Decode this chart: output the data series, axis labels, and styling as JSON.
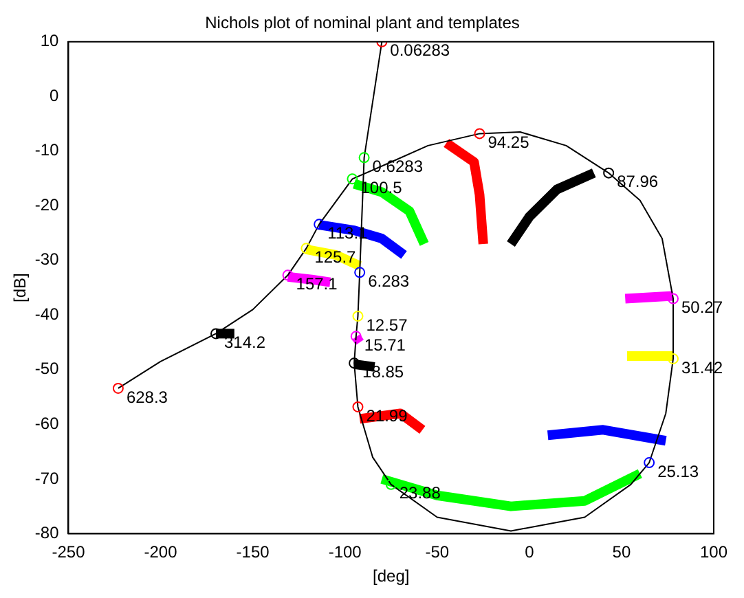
{
  "chart_data": {
    "type": "line",
    "title": "Nichols plot of nominal plant and templates",
    "xlabel": "[deg]",
    "ylabel": "[dB]",
    "xlim": [
      -250,
      100
    ],
    "xticks": [
      -250,
      -200,
      -150,
      -100,
      -50,
      0,
      50,
      100
    ],
    "ylim": [
      -80,
      10
    ],
    "yticks": [
      -80,
      -70,
      -60,
      -50,
      -40,
      -30,
      -20,
      -10,
      0,
      10
    ],
    "grid": false,
    "legend": false,
    "series": [
      {
        "color": "#000000",
        "marker": "none",
        "x": [
          -80,
          -89.6,
          -92,
          -93,
          -94,
          -95,
          -93,
          -85,
          -75,
          -50,
          -10,
          30,
          55,
          65,
          74,
          78,
          78,
          72,
          60,
          43,
          20,
          -5,
          -27,
          -55,
          -75,
          -96,
          -114,
          -121,
          -131,
          -150,
          -170,
          -200,
          -223
        ],
        "values": [
          10,
          -11.2,
          -32.2,
          -40.2,
          -43.9,
          -48.8,
          -56.8,
          -66,
          -71,
          -77,
          -79.5,
          -77,
          -71,
          -67,
          -58,
          -48,
          -37,
          -26,
          -19,
          -14,
          -9,
          -6.5,
          -6.8,
          -9,
          -12,
          -15.1,
          -23.4,
          -27.8,
          -32.7,
          -39,
          -43.4,
          -48.5,
          -53.4
        ]
      },
      {
        "color": "#ff0000",
        "marker": "none",
        "x": [
          -45,
          -30,
          -27,
          -25
        ],
        "values": [
          -8.5,
          -12,
          -18,
          -27
        ]
      },
      {
        "color": "#000000",
        "marker": "none",
        "x": [
          -10,
          0,
          15,
          35
        ],
        "values": [
          -27,
          -22,
          -17,
          -14
        ]
      },
      {
        "color": "#00ff00",
        "marker": "none",
        "x": [
          -95,
          -80,
          -65,
          -57
        ],
        "values": [
          -16,
          -17.5,
          -21,
          -27
        ]
      },
      {
        "color": "#0000ff",
        "marker": "none",
        "x": [
          -114,
          -95,
          -80,
          -68
        ],
        "values": [
          -23.5,
          -24.5,
          -26,
          -29
        ]
      },
      {
        "color": "#ffff00",
        "marker": "none",
        "x": [
          -121,
          -105,
          -92
        ],
        "values": [
          -28,
          -29,
          -31
        ]
      },
      {
        "color": "#ff00ff",
        "marker": "none",
        "x": [
          -131,
          -118,
          -108
        ],
        "values": [
          -33,
          -33.5,
          -34
        ]
      },
      {
        "color": "#ff00ff",
        "marker": "none",
        "x": [
          52,
          78
        ],
        "values": [
          -37,
          -36.5
        ]
      },
      {
        "color": "#ffff00",
        "marker": "none",
        "x": [
          53,
          78
        ],
        "values": [
          -47.5,
          -47.5
        ]
      },
      {
        "color": "#000000",
        "marker": "none",
        "x": [
          -95,
          -84
        ],
        "values": [
          -49,
          -49.5
        ]
      },
      {
        "color": "#ff00ff",
        "marker": "none",
        "x": [
          -94,
          -92
        ],
        "values": [
          -44,
          -45
        ]
      },
      {
        "color": "#ff0000",
        "marker": "none",
        "x": [
          -92,
          -70,
          -58
        ],
        "values": [
          -59,
          -58,
          -61
        ]
      },
      {
        "color": "#00ff00",
        "marker": "none",
        "x": [
          -80,
          -50,
          -10,
          30,
          60
        ],
        "values": [
          -70,
          -73,
          -75,
          -74,
          -69
        ]
      },
      {
        "color": "#0000ff",
        "marker": "none",
        "x": [
          10,
          40,
          74
        ],
        "values": [
          -62,
          -61,
          -63
        ]
      },
      {
        "color": "#000000",
        "marker": "none",
        "x": [
          -170,
          -160
        ],
        "values": [
          -43.4,
          -43.4
        ]
      },
      {
        "type": "scatter",
        "marker": "circle",
        "x": [
          -80,
          -89.6,
          -92,
          -93,
          -94,
          -95,
          -93,
          -75,
          65,
          78,
          78,
          43,
          -27,
          -96,
          -114,
          -121,
          -131,
          -170,
          -223
        ],
        "values": [
          10,
          -11.2,
          -32.2,
          -40.2,
          -43.9,
          -48.8,
          -56.8,
          -71,
          -67,
          -48,
          -37,
          -14,
          -6.8,
          -15.1,
          -23.4,
          -27.8,
          -32.7,
          -43.4,
          -53.4
        ],
        "colors": [
          "#ff0000",
          "#00ff00",
          "#0000ff",
          "#ffff00",
          "#ff00ff",
          "#000000",
          "#ff0000",
          "#00ff00",
          "#0000ff",
          "#ffff00",
          "#ff00ff",
          "#000000",
          "#ff0000",
          "#00ff00",
          "#0000ff",
          "#ffff00",
          "#ff00ff",
          "#000000",
          "#ff0000"
        ]
      }
    ],
    "annotations": [
      {
        "text": "0.06283",
        "x": -80,
        "y": 10
      },
      {
        "text": "0.6283",
        "x": -89.6,
        "y": -11.2
      },
      {
        "text": "6.283",
        "x": -92,
        "y": -32.2
      },
      {
        "text": "12.57",
        "x": -93,
        "y": -40.2
      },
      {
        "text": "15.71",
        "x": -94,
        "y": -43.9
      },
      {
        "text": "18.85",
        "x": -95,
        "y": -48.8
      },
      {
        "text": "21.99",
        "x": -93,
        "y": -56.8
      },
      {
        "text": "23.88",
        "x": -75,
        "y": -71
      },
      {
        "text": "25.13",
        "x": 65,
        "y": -67
      },
      {
        "text": "31.42",
        "x": 78,
        "y": -48
      },
      {
        "text": "50.27",
        "x": 78,
        "y": -37
      },
      {
        "text": "87.96",
        "x": 43,
        "y": -14
      },
      {
        "text": "94.25",
        "x": -27,
        "y": -6.8
      },
      {
        "text": "100.5",
        "x": -96,
        "y": -15.1
      },
      {
        "text": "113.1",
        "x": -114,
        "y": -23.4
      },
      {
        "text": "125.7",
        "x": -121,
        "y": -27.8
      },
      {
        "text": "157.1",
        "x": -131,
        "y": -32.7
      },
      {
        "text": "314.2",
        "x": -170,
        "y": -43.4
      },
      {
        "text": "628.3",
        "x": -223,
        "y": -53.4
      }
    ]
  }
}
